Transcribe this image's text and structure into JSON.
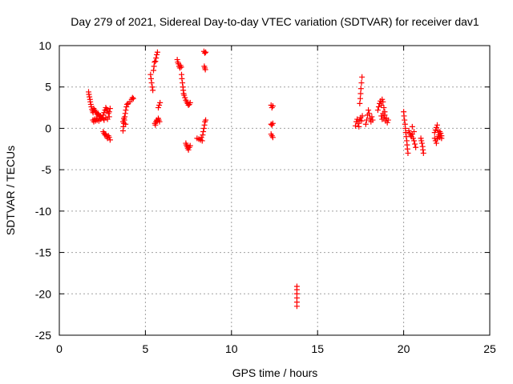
{
  "chart_data": {
    "type": "scatter",
    "title": "Day 279 of 2021, Sidereal Day-to-day VTEC variation (SDTVAR) for receiver dav1",
    "xlabel": "GPS time / hours",
    "ylabel": "SDTVAR / TECUs",
    "xlim": [
      0,
      25
    ],
    "ylim": [
      -25,
      10
    ],
    "xticks": [
      0,
      5,
      10,
      15,
      20,
      25
    ],
    "yticks": [
      -25,
      -20,
      -15,
      -10,
      -5,
      0,
      5,
      10
    ],
    "grid": true,
    "marker": "+",
    "marker_color": "#ff0000",
    "series": [
      {
        "name": "SDTVAR",
        "points": [
          [
            1.7,
            4.4
          ],
          [
            1.72,
            4.1
          ],
          [
            1.75,
            3.8
          ],
          [
            1.78,
            3.5
          ],
          [
            1.8,
            3.2
          ],
          [
            1.83,
            2.9
          ],
          [
            1.86,
            2.6
          ],
          [
            1.9,
            2.3
          ],
          [
            1.93,
            2.1
          ],
          [
            1.96,
            1.9
          ],
          [
            2.0,
            2.4
          ],
          [
            2.05,
            2.2
          ],
          [
            2.1,
            2.0
          ],
          [
            2.15,
            1.9
          ],
          [
            2.2,
            1.7
          ],
          [
            2.25,
            1.8
          ],
          [
            2.3,
            1.6
          ],
          [
            2.35,
            1.4
          ],
          [
            2.4,
            1.5
          ],
          [
            2.45,
            1.3
          ],
          [
            1.95,
            1.0
          ],
          [
            2.0,
            0.8
          ],
          [
            2.05,
            1.1
          ],
          [
            2.1,
            0.9
          ],
          [
            2.15,
            1.2
          ],
          [
            2.2,
            1.0
          ],
          [
            2.3,
            0.9
          ],
          [
            2.4,
            1.1
          ],
          [
            2.55,
            1.6
          ],
          [
            2.6,
            1.9
          ],
          [
            2.65,
            2.2
          ],
          [
            2.7,
            2.5
          ],
          [
            2.75,
            2.3
          ],
          [
            2.8,
            2.1
          ],
          [
            2.85,
            1.8
          ],
          [
            2.9,
            2.0
          ],
          [
            2.95,
            2.4
          ],
          [
            2.55,
            1.2
          ],
          [
            2.6,
            1.0
          ],
          [
            2.7,
            1.3
          ],
          [
            2.8,
            1.1
          ],
          [
            2.9,
            1.4
          ],
          [
            2.55,
            -0.4
          ],
          [
            2.6,
            -0.6
          ],
          [
            2.65,
            -0.8
          ],
          [
            2.7,
            -0.7
          ],
          [
            2.75,
            -1.0
          ],
          [
            2.8,
            -1.2
          ],
          [
            2.85,
            -0.9
          ],
          [
            2.9,
            -1.1
          ],
          [
            2.95,
            -1.4
          ],
          [
            3.7,
            -0.3
          ],
          [
            3.72,
            0.2
          ],
          [
            3.75,
            0.6
          ],
          [
            3.78,
            1.0
          ],
          [
            3.8,
            1.4
          ],
          [
            3.83,
            1.8
          ],
          [
            3.86,
            2.2
          ],
          [
            3.9,
            2.6
          ],
          [
            3.93,
            2.9
          ],
          [
            3.7,
            0.8
          ],
          [
            3.75,
            1.2
          ],
          [
            3.85,
            0.5
          ],
          [
            4.0,
            3.0
          ],
          [
            4.1,
            3.2
          ],
          [
            4.2,
            3.5
          ],
          [
            4.25,
            3.7
          ],
          [
            4.3,
            3.6
          ],
          [
            5.3,
            6.5
          ],
          [
            5.33,
            6.0
          ],
          [
            5.36,
            5.5
          ],
          [
            5.4,
            5.0
          ],
          [
            5.43,
            4.6
          ],
          [
            5.47,
            7.0
          ],
          [
            5.5,
            7.5
          ],
          [
            5.53,
            8.0
          ],
          [
            5.58,
            8.1
          ],
          [
            5.62,
            8.5
          ],
          [
            5.66,
            8.9
          ],
          [
            5.7,
            9.2
          ],
          [
            5.55,
            0.6
          ],
          [
            5.58,
            0.4
          ],
          [
            5.62,
            0.8
          ],
          [
            5.66,
            1.0
          ],
          [
            5.7,
            0.9
          ],
          [
            5.75,
            1.2
          ],
          [
            5.78,
            1.0
          ],
          [
            5.82,
            0.8
          ],
          [
            5.75,
            2.5
          ],
          [
            5.8,
            2.8
          ],
          [
            5.85,
            3.1
          ],
          [
            6.85,
            8.3
          ],
          [
            6.88,
            8.0
          ],
          [
            6.92,
            7.8
          ],
          [
            6.96,
            7.5
          ],
          [
            7.0,
            7.3
          ],
          [
            7.04,
            7.6
          ],
          [
            7.08,
            7.4
          ],
          [
            7.1,
            6.5
          ],
          [
            7.12,
            6.0
          ],
          [
            7.15,
            5.5
          ],
          [
            7.18,
            5.0
          ],
          [
            7.2,
            4.6
          ],
          [
            7.22,
            4.2
          ],
          [
            7.25,
            4.0
          ],
          [
            7.3,
            3.7
          ],
          [
            7.35,
            3.4
          ],
          [
            7.4,
            3.2
          ],
          [
            7.45,
            3.0
          ],
          [
            7.5,
            2.8
          ],
          [
            7.55,
            2.9
          ],
          [
            7.6,
            3.1
          ],
          [
            7.35,
            -1.8
          ],
          [
            7.38,
            -2.0
          ],
          [
            7.42,
            -2.2
          ],
          [
            7.46,
            -2.4
          ],
          [
            7.5,
            -2.6
          ],
          [
            7.55,
            -2.3
          ],
          [
            7.6,
            -2.1
          ],
          [
            8.0,
            -1.2
          ],
          [
            8.1,
            -1.3
          ],
          [
            8.2,
            -1.4
          ],
          [
            8.25,
            -1.1
          ],
          [
            8.3,
            -1.5
          ],
          [
            8.33,
            -0.8
          ],
          [
            8.36,
            -0.4
          ],
          [
            8.4,
            0.0
          ],
          [
            8.43,
            0.4
          ],
          [
            8.46,
            0.8
          ],
          [
            8.5,
            1.0
          ],
          [
            8.4,
            9.3
          ],
          [
            8.45,
            9.1
          ],
          [
            8.5,
            9.2
          ],
          [
            8.42,
            7.5
          ],
          [
            8.45,
            7.3
          ],
          [
            8.48,
            7.1
          ],
          [
            12.3,
            2.8
          ],
          [
            12.35,
            2.5
          ],
          [
            12.4,
            2.7
          ],
          [
            12.3,
            0.5
          ],
          [
            12.35,
            0.4
          ],
          [
            12.4,
            0.6
          ],
          [
            12.3,
            -0.7
          ],
          [
            12.35,
            -0.9
          ],
          [
            12.4,
            -1.1
          ],
          [
            13.8,
            -19.1
          ],
          [
            13.8,
            -19.5
          ],
          [
            13.8,
            -20.0
          ],
          [
            13.8,
            -20.5
          ],
          [
            13.8,
            -21.0
          ],
          [
            13.8,
            -21.5
          ],
          [
            17.2,
            0.3
          ],
          [
            17.25,
            0.8
          ],
          [
            17.3,
            1.1
          ],
          [
            17.35,
            0.6
          ],
          [
            17.4,
            0.2
          ],
          [
            17.45,
            1.0
          ],
          [
            17.5,
            1.3
          ],
          [
            17.55,
            0.9
          ],
          [
            17.6,
            1.5
          ],
          [
            17.45,
            3.0
          ],
          [
            17.48,
            3.6
          ],
          [
            17.5,
            4.2
          ],
          [
            17.52,
            4.8
          ],
          [
            17.55,
            5.5
          ],
          [
            17.58,
            6.2
          ],
          [
            17.8,
            0.5
          ],
          [
            17.85,
            1.0
          ],
          [
            17.9,
            1.6
          ],
          [
            17.95,
            2.2
          ],
          [
            18.0,
            1.8
          ],
          [
            18.05,
            1.2
          ],
          [
            18.1,
            0.8
          ],
          [
            18.15,
            1.4
          ],
          [
            18.2,
            1.0
          ],
          [
            18.5,
            2.2
          ],
          [
            18.55,
            2.6
          ],
          [
            18.6,
            3.0
          ],
          [
            18.65,
            3.3
          ],
          [
            18.7,
            2.8
          ],
          [
            18.75,
            3.5
          ],
          [
            18.8,
            3.2
          ],
          [
            18.85,
            2.5
          ],
          [
            18.9,
            2.0
          ],
          [
            18.7,
            1.5
          ],
          [
            18.75,
            1.1
          ],
          [
            18.8,
            1.8
          ],
          [
            18.85,
            1.3
          ],
          [
            18.9,
            1.6
          ],
          [
            18.95,
            0.9
          ],
          [
            19.0,
            1.2
          ],
          [
            19.05,
            0.7
          ],
          [
            19.1,
            1.0
          ],
          [
            20.0,
            2.0
          ],
          [
            20.02,
            1.5
          ],
          [
            20.05,
            1.0
          ],
          [
            20.08,
            0.5
          ],
          [
            20.1,
            0.0
          ],
          [
            20.12,
            -0.5
          ],
          [
            20.15,
            -1.0
          ],
          [
            20.18,
            -1.5
          ],
          [
            20.2,
            -2.0
          ],
          [
            20.22,
            -2.5
          ],
          [
            20.25,
            -3.0
          ],
          [
            20.3,
            -0.3
          ],
          [
            20.35,
            -0.6
          ],
          [
            20.4,
            -0.8
          ],
          [
            20.45,
            -1.0
          ],
          [
            20.5,
            -0.7
          ],
          [
            20.55,
            -1.2
          ],
          [
            20.6,
            -1.5
          ],
          [
            20.65,
            -1.9
          ],
          [
            20.7,
            -2.3
          ],
          [
            20.5,
            0.2
          ],
          [
            20.6,
            -0.4
          ],
          [
            21.0,
            -1.2
          ],
          [
            21.03,
            -1.5
          ],
          [
            21.06,
            -1.8
          ],
          [
            21.1,
            -2.2
          ],
          [
            21.12,
            -2.6
          ],
          [
            21.15,
            -3.0
          ],
          [
            21.8,
            -0.5
          ],
          [
            21.85,
            -0.2
          ],
          [
            21.9,
            0.1
          ],
          [
            21.95,
            0.4
          ],
          [
            22.0,
            -0.3
          ],
          [
            22.05,
            -0.8
          ],
          [
            22.1,
            -1.1
          ],
          [
            22.15,
            -0.6
          ],
          [
            22.2,
            -0.9
          ],
          [
            21.8,
            -1.2
          ],
          [
            21.85,
            -1.5
          ],
          [
            21.9,
            -1.8
          ],
          [
            21.95,
            -1.3
          ],
          [
            22.0,
            -1.0
          ],
          [
            22.1,
            -0.4
          ],
          [
            22.2,
            -1.2
          ]
        ]
      }
    ]
  }
}
